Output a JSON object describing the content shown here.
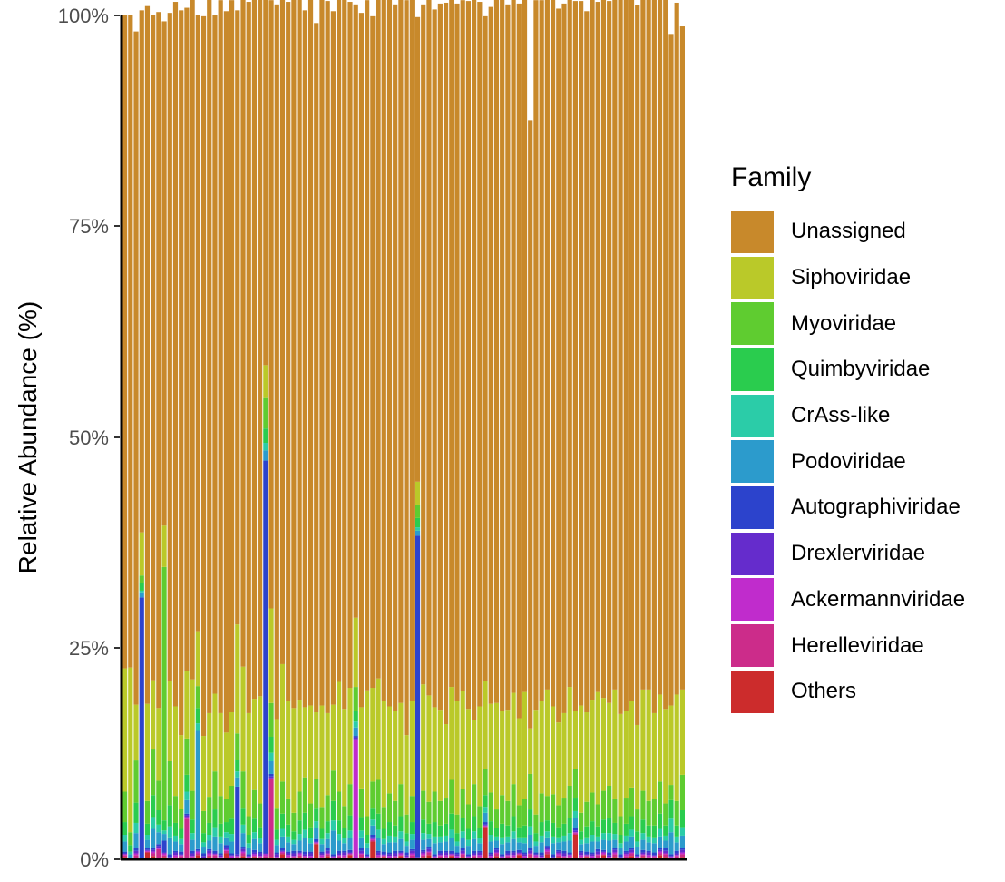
{
  "chart_data": {
    "type": "bar",
    "stacked": true,
    "normalized": true,
    "title": "",
    "xlabel": "",
    "ylabel": "Relative Abundance (%)",
    "ylim": [
      0,
      100
    ],
    "yticks": [
      "0%",
      "25%",
      "50%",
      "75%",
      "100%"
    ],
    "ytick_values": [
      0,
      25,
      50,
      75,
      100
    ],
    "x_tick_labels_shown": false,
    "grid": false,
    "legend": {
      "title": "Family",
      "position": "right"
    },
    "families": [
      "Unassigned",
      "Siphoviridae",
      "Myoviridae",
      "Quimbyviridae",
      "CrAss-like",
      "Podoviridae",
      "Autographiviridae",
      "Drexlerviridae",
      "Ackermannviridae",
      "Herelleviridae",
      "Others"
    ],
    "colors": [
      "#C8892B",
      "#BAC929",
      "#5FCC30",
      "#2ACC4E",
      "#2BCCA8",
      "#2C9BCC",
      "#2C43CC",
      "#652CCC",
      "#C02CCC",
      "#CC2C8A",
      "#CC2C2C"
    ],
    "num_samples": 100,
    "series": [
      {
        "name": "Others",
        "values": [
          0.3,
          0,
          0.2,
          0,
          0.8,
          0.4,
          0,
          0.3,
          0,
          0,
          0.2,
          0,
          0,
          0.5,
          0,
          0.3,
          0.2,
          0,
          0.7,
          0,
          0.2,
          0.4,
          0,
          0.3,
          0,
          0.2,
          0.3,
          0,
          0.6,
          0,
          0.2,
          0.3,
          0,
          0,
          1.8,
          0,
          0.4,
          0,
          0.2,
          0,
          0.5,
          0,
          0.3,
          0,
          2.1,
          0,
          0.3,
          0,
          0,
          0.4,
          0,
          0.2,
          0,
          0.3,
          0.5,
          0,
          0.2,
          0,
          0.4,
          0,
          0.3,
          0,
          0.2,
          0,
          3.8,
          0,
          0.4,
          0,
          0.2,
          0,
          0.5,
          0,
          0.3,
          0.2,
          0,
          0.6,
          0,
          0.3,
          0,
          0.2,
          2.9,
          0,
          0.3,
          0,
          0.2,
          0.5,
          0,
          0.3,
          0,
          0.2,
          0.4,
          0,
          0.3,
          0,
          0.2,
          0.5,
          0.3,
          0,
          0.2,
          0.3
        ]
      },
      {
        "name": "Herelleviridae",
        "values": [
          0.2,
          0,
          0.3,
          0,
          0.1,
          0.3,
          1.2,
          0.2,
          0,
          0.3,
          0.2,
          4.8,
          0.3,
          0.2,
          0.1,
          0.2,
          0.3,
          0.1,
          0.3,
          0.2,
          0.1,
          0.3,
          0.2,
          0.1,
          0.3,
          0.2,
          9.2,
          0.1,
          0.2,
          0.3,
          0.1,
          0.2,
          0.3,
          0.2,
          0.1,
          0.3,
          0.2,
          0.1,
          0.2,
          0.3,
          0.1,
          0.2,
          0.3,
          0.1,
          0.2,
          0.3,
          0.1,
          0.2,
          0.3,
          0.1,
          0.2,
          0.3,
          0.1,
          0.2,
          0.3,
          0.1,
          0.2,
          0.3,
          0.1,
          0.2,
          0.3,
          0.1,
          0.2,
          0.3,
          0.1,
          0.2,
          0.3,
          0.1,
          0.2,
          0.3,
          0.1,
          0.2,
          0.3,
          0.1,
          0.2,
          0.3,
          0.1,
          0.2,
          0.3,
          0.1,
          0.2,
          0.3,
          0.1,
          0.2,
          0.3,
          0.1,
          0.2,
          0.3,
          0.1,
          0.2,
          0.3,
          0.1,
          0.2,
          0.3,
          0.1,
          0.2,
          0.3,
          0.1,
          0.2,
          0.3
        ]
      },
      {
        "name": "Ackermannviridae",
        "values": [
          0.1,
          0,
          0.2,
          0,
          0.1,
          0.2,
          0.1,
          0.2,
          0.1,
          0.2,
          0.1,
          0.2,
          0.1,
          0.2,
          0.1,
          0.2,
          0.1,
          0.2,
          0.1,
          0.2,
          0.1,
          0.2,
          0.1,
          0.2,
          0.1,
          0.2,
          0.1,
          0.2,
          0.1,
          0.2,
          0.1,
          0.2,
          0.1,
          0.2,
          0.1,
          0.2,
          0.1,
          0.2,
          0.1,
          0.2,
          0.1,
          14.0,
          0.1,
          0.2,
          0.1,
          0.2,
          0.1,
          0.2,
          0.1,
          0.2,
          0.1,
          0.2,
          0.1,
          0.2,
          0.1,
          0.2,
          0.1,
          0.2,
          0.1,
          0.2,
          0.1,
          0.2,
          0.1,
          0.2,
          0.1,
          0.2,
          0.1,
          0.2,
          0.1,
          0.2,
          0.1,
          0.2,
          0.1,
          0.2,
          0.1,
          0.2,
          0.1,
          0.2,
          0.1,
          0.2,
          0.1,
          0.2,
          0.1,
          0.2,
          0.1,
          0.2,
          0.1,
          0.2,
          0.1,
          0.2,
          0.1,
          0.2,
          0.1,
          0.2,
          0.1,
          0.2,
          0.1,
          0.2,
          0.1,
          0.2
        ]
      },
      {
        "name": "Drexlerviridae",
        "values": [
          0.1,
          0,
          0.3,
          0,
          0.1,
          0.2,
          0.3,
          0.1,
          0.2,
          0.3,
          0.1,
          0.2,
          0.3,
          0.1,
          0.2,
          0.3,
          0.1,
          0.2,
          0.3,
          0.1,
          0.2,
          0.3,
          0.1,
          0.2,
          0.3,
          0.1,
          0.2,
          0.3,
          0.1,
          0.2,
          0.3,
          0.1,
          0.2,
          0.3,
          0.1,
          0.2,
          0.3,
          0.1,
          0.2,
          0.3,
          0.1,
          0.2,
          0.3,
          0.1,
          0.2,
          0.3,
          0.1,
          0.2,
          0.3,
          0.1,
          0.2,
          0.3,
          0.1,
          0.2,
          0.3,
          0.1,
          0.2,
          0.3,
          0.1,
          0.2,
          0.3,
          0.1,
          0.2,
          0.3,
          0.1,
          0.2,
          0.3,
          0.1,
          0.2,
          0.3,
          0.1,
          0.2,
          0.3,
          0.1,
          0.2,
          0.3,
          0.1,
          0.2,
          0.3,
          0.1,
          0.2,
          0.3,
          0.1,
          0.2,
          0.3,
          0.1,
          0.2,
          0.3,
          0.1,
          0.2,
          0.3,
          0.1,
          0.2,
          0.3,
          0.1,
          0.2,
          0.3,
          0.1,
          0.2,
          0.3
        ]
      },
      {
        "name": "Autographiviridae",
        "values": [
          0.2,
          0,
          0.3,
          31.0,
          0.2,
          0.3,
          0.2,
          1.4,
          0.3,
          0.2,
          0.3,
          0.2,
          0.3,
          0.2,
          0.3,
          0.2,
          0.3,
          0.2,
          0.3,
          0.2,
          8.0,
          0.3,
          0.2,
          0.3,
          0.2,
          46.5,
          0.3,
          0.2,
          0.3,
          0.2,
          0.3,
          0.2,
          0.3,
          0.2,
          0.3,
          0.2,
          0.3,
          0.2,
          0.3,
          0.2,
          0.3,
          0.2,
          0.3,
          0.2,
          0.3,
          0.2,
          0.3,
          0.2,
          0.3,
          0.2,
          0.3,
          0.2,
          38.0,
          0.2,
          0.3,
          0.2,
          0.3,
          0.2,
          0.3,
          0.2,
          0.3,
          0.2,
          0.3,
          0.2,
          0.3,
          0.2,
          0.3,
          0.2,
          0.3,
          0.2,
          0.3,
          0.2,
          0.3,
          0.2,
          0.3,
          0.2,
          0.3,
          0.2,
          0.3,
          0.2,
          0.3,
          0.2,
          0.3,
          0.2,
          0.3,
          0.2,
          0.3,
          0.2,
          0.3,
          0.2,
          0.3,
          0.2,
          0.3,
          0.2,
          0.3,
          0.2,
          0.3,
          0.2,
          0.3,
          0.2
        ]
      },
      {
        "name": "Podoviridae",
        "values": [
          1.2,
          0.6,
          1.8,
          0.6,
          1.0,
          2.2,
          1.4,
          0.8,
          2.0,
          1.1,
          0.9,
          1.6,
          1.3,
          14.0,
          0.8,
          1.0,
          1.7,
          1.2,
          0.9,
          1.4,
          1.1,
          1.6,
          0.8,
          1.3,
          1.0,
          1.2,
          1.5,
          0.9,
          1.4,
          1.1,
          0.8,
          1.2,
          1.6,
          1.0,
          1.3,
          0.9,
          1.1,
          2.8,
          1.2,
          0.9,
          1.4,
          1.0,
          1.3,
          0.8,
          1.1,
          1.5,
          0.9,
          1.2,
          1.0,
          1.4,
          0.8,
          1.1,
          0.6,
          1.2,
          0.9,
          1.3,
          1.0,
          1.1,
          1.5,
          0.8,
          1.2,
          1.0,
          1.4,
          0.9,
          1.1,
          1.3,
          0.8,
          1.2,
          1.0,
          1.4,
          0.9,
          1.1,
          1.6,
          0.8,
          1.2,
          1.0,
          1.3,
          0.9,
          1.1,
          1.4,
          1.2,
          0.8,
          1.0,
          1.3,
          0.9,
          1.2,
          1.4,
          1.0,
          0.8,
          1.1,
          1.3,
          0.9,
          1.2,
          1.0,
          1.1,
          1.4,
          0.9,
          2.6,
          1.0,
          1.5
        ]
      },
      {
        "name": "CrAss-like",
        "values": [
          0.8,
          0.3,
          1.2,
          0.2,
          0.6,
          1.4,
          0.9,
          0.4,
          1.3,
          0.7,
          0.6,
          1.0,
          0.8,
          0.9,
          0.5,
          0.7,
          1.1,
          0.8,
          0.6,
          0.9,
          0.7,
          1.0,
          0.5,
          0.8,
          0.6,
          0.9,
          1.0,
          0.6,
          0.9,
          0.7,
          0.5,
          0.8,
          1.0,
          0.6,
          0.8,
          0.6,
          0.7,
          1.2,
          0.8,
          0.6,
          0.9,
          0.7,
          0.8,
          0.5,
          0.7,
          1.0,
          0.6,
          0.8,
          0.7,
          0.9,
          0.5,
          0.7,
          0.4,
          0.8,
          0.6,
          0.8,
          0.7,
          0.7,
          1.0,
          0.5,
          0.8,
          0.7,
          0.9,
          0.6,
          0.7,
          0.8,
          0.5,
          0.8,
          0.7,
          0.9,
          0.6,
          0.7,
          1.0,
          0.5,
          0.8,
          0.7,
          0.8,
          0.6,
          0.7,
          0.9,
          0.8,
          0.5,
          0.7,
          0.8,
          0.6,
          0.8,
          0.9,
          0.7,
          0.5,
          0.7,
          0.8,
          0.6,
          0.8,
          0.7,
          0.7,
          0.9,
          0.6,
          1.6,
          0.7,
          1.0
        ]
      },
      {
        "name": "Quimbyviridae",
        "values": [
          1.5,
          0.8,
          2.4,
          0.9,
          1.3,
          2.6,
          1.7,
          1.2,
          2.5,
          1.5,
          1.2,
          2.0,
          1.6,
          1.8,
          1.1,
          1.4,
          2.1,
          1.5,
          1.2,
          1.8,
          1.4,
          2.0,
          1.0,
          1.6,
          1.3,
          1.7,
          1.9,
          1.2,
          1.8,
          1.4,
          1.0,
          1.6,
          2.0,
          1.3,
          1.6,
          1.2,
          1.4,
          2.3,
          1.6,
          1.2,
          1.8,
          1.3,
          1.6,
          1.0,
          1.4,
          1.9,
          1.2,
          1.6,
          1.3,
          1.8,
          1.0,
          1.4,
          1.1,
          1.6,
          1.2,
          1.7,
          1.3,
          1.4,
          1.9,
          1.0,
          1.6,
          1.3,
          1.8,
          1.2,
          1.4,
          1.6,
          1.0,
          1.6,
          1.3,
          1.8,
          1.2,
          1.4,
          2.0,
          1.0,
          1.6,
          1.3,
          1.6,
          1.2,
          1.4,
          1.8,
          1.6,
          1.0,
          1.3,
          1.6,
          1.2,
          1.6,
          1.8,
          1.3,
          1.0,
          1.4,
          1.6,
          1.2,
          1.6,
          1.3,
          1.4,
          1.8,
          1.2,
          2.2,
          1.3,
          2.0
        ]
      },
      {
        "name": "Myoviridae",
        "values": [
          3.6,
          1.5,
          5.0,
          0.9,
          2.7,
          5.5,
          3.5,
          30.0,
          5.2,
          3.2,
          2.4,
          4.3,
          3.4,
          2.6,
          2.6,
          3.1,
          4.5,
          3.3,
          2.7,
          3.9,
          3.1,
          4.3,
          2.2,
          3.4,
          2.8,
          3.6,
          4.0,
          2.6,
          3.8,
          3.1,
          2.2,
          3.4,
          4.2,
          2.8,
          3.4,
          2.6,
          3.1,
          3.6,
          3.4,
          2.6,
          3.7,
          2.8,
          3.4,
          2.2,
          3.1,
          4.0,
          2.6,
          3.4,
          2.9,
          3.8,
          2.2,
          3.1,
          1.6,
          3.4,
          2.6,
          3.6,
          2.9,
          3.1,
          4.0,
          2.2,
          3.4,
          2.9,
          3.8,
          2.6,
          3.1,
          3.4,
          2.2,
          3.4,
          2.9,
          3.8,
          2.6,
          3.1,
          4.2,
          2.2,
          3.4,
          2.9,
          3.4,
          2.6,
          3.1,
          3.8,
          3.4,
          2.2,
          2.9,
          3.4,
          2.6,
          3.4,
          3.8,
          2.9,
          2.2,
          3.1,
          3.4,
          2.6,
          3.4,
          2.9,
          3.1,
          3.8,
          2.6,
          1.8,
          2.9,
          4.2
        ]
      },
      {
        "name": "Siphoviridae",
        "values": [
          14.6,
          19.5,
          6.6,
          5.1,
          11.5,
          8.1,
          8.6,
          4.9,
          9.5,
          10.6,
          8.7,
          8.0,
          13.2,
          6.5,
          8.9,
          9.9,
          9.2,
          9.8,
          7.9,
          8.7,
          12.9,
          12.4,
          12.2,
          10.8,
          12.7,
          3.9,
          11.2,
          10.5,
          13.9,
          11.5,
          12.4,
          10.9,
          8.3,
          11.6,
          7.9,
          12.0,
          9.7,
          7.8,
          13.0,
          11.5,
          11.4,
          8.2,
          9.6,
          14.9,
          11.1,
          12.0,
          12.5,
          10.3,
          10.7,
          9.6,
          9.4,
          11.2,
          2.7,
          12.6,
          12.6,
          10.0,
          10.8,
          8.7,
          11.0,
          13.4,
          11.6,
          11.3,
          7.6,
          11.8,
          10.4,
          10.5,
          12.6,
          10.0,
          10.8,
          10.8,
          10.3,
          12.7,
          5.4,
          12.4,
          10.9,
          12.6,
          10.4,
          9.8,
          10.0,
          11.7,
          6.9,
          12.7,
          10.6,
          11.0,
          13.3,
          11.0,
          9.8,
          12.9,
          12.1,
          10.3,
          10.2,
          10.0,
          12.0,
          13.2,
          10.2,
          10.3,
          11.2,
          9.4,
          12.6,
          10.1
        ]
      },
      {
        "name": "Unassigned",
        "values": [
          77.4,
          77.3,
          79.7,
          61.8,
          82.6,
          78.8,
          82.4,
          59.7,
          79.1,
          83.4,
          85.8,
          78.5,
          80.6,
          73.0,
          85.2,
          84.5,
          80.4,
          84.4,
          85.4,
          84.3,
          72.7,
          80.4,
          84.2,
          83.4,
          83.6,
          43.6,
          72.0,
          84.6,
          79.6,
          82.8,
          84.3,
          83.4,
          82.5,
          84.4,
          81.6,
          83.8,
          84.3,
          82.1,
          80.8,
          84.4,
          81.2,
          72.6,
          82.2,
          81.7,
          79.5,
          80.4,
          83.5,
          84.5,
          83.6,
          83.8,
          87.0,
          83.3,
          55.0,
          80.5,
          83.7,
          82.6,
          83.6,
          85.4,
          81.9,
          82.6,
          81.8,
          83.8,
          85.3,
          83.4,
          78.7,
          82.5,
          83.8,
          84.5,
          83.5,
          82.8,
          84.6,
          82.1,
          72.0,
          84.0,
          83.0,
          82.6,
          84.0,
          84.5,
          84.0,
          81.8,
          84.0,
          83.4,
          83.0,
          83.4,
          81.7,
          83.0,
          83.1,
          82.9,
          84.9,
          84.5,
          83.7,
          85.2,
          82.8,
          83.6,
          85.1,
          83.4,
          84.6,
          79.4,
          81.9,
          78.5
        ]
      }
    ]
  }
}
